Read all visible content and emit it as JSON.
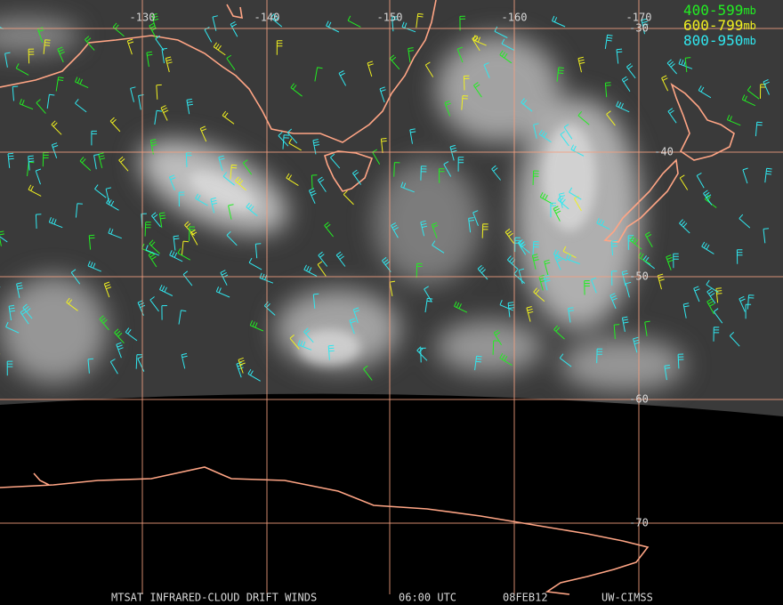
{
  "map": {
    "longitude_labels": [
      "-130",
      "-140",
      "-150",
      "-160",
      "-170"
    ],
    "latitude_labels": [
      "-30",
      "-40",
      "-50",
      "-60",
      "-70"
    ],
    "legend": [
      {
        "range": "400-599",
        "unit": "mb",
        "color": "#22ee22"
      },
      {
        "range": "600-799",
        "unit": "mb",
        "color": "#f0f020"
      },
      {
        "range": "800-950",
        "unit": "mb",
        "color": "#30e8f0"
      }
    ],
    "footer": [
      "MTSAT INFRARED-CLOUD DRIFT WINDS",
      "06:00 UTC",
      "08FEB12",
      "UW-CIMSS"
    ]
  }
}
